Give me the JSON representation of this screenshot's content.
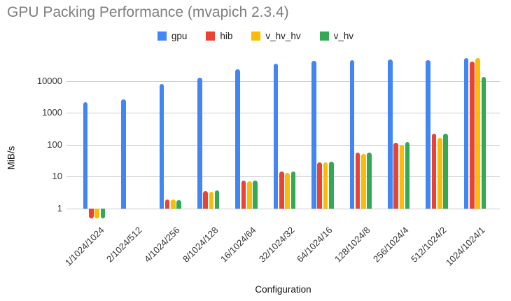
{
  "chart_data": {
    "type": "bar",
    "title": "GPU Packing Performance (mvapich 2.3.4)",
    "xlabel": "Configuration",
    "ylabel": "MiB/s",
    "y_scale": "log",
    "y_axis": {
      "ticks": [
        1,
        10,
        100,
        1000,
        10000
      ],
      "baseline": 1,
      "min": 0.47,
      "max": 60000
    },
    "grid": true,
    "legend_position": "top",
    "categories": [
      "1/1024/1024",
      "2/1024/512",
      "4/1024/256",
      "8/1024/128",
      "16/1024/64",
      "32/1024/32",
      "64/1024/16",
      "128/1024/8",
      "256/1024/4",
      "512/1024/2",
      "1024/1024/1"
    ],
    "series": [
      {
        "name": "gpu",
        "color": "#4285F4",
        "values": [
          2200,
          2700,
          8100,
          12700,
          23500,
          35000,
          42500,
          45500,
          48500,
          45500,
          52000
        ]
      },
      {
        "name": "hib",
        "color": "#EA4335",
        "values": [
          0.5,
          null,
          2.0,
          3.6,
          7.5,
          15,
          29,
          58,
          120,
          230,
          42000
        ]
      },
      {
        "name": "v_hv_hv",
        "color": "#FBBC04",
        "values": [
          0.5,
          null,
          2.0,
          3.5,
          7.4,
          13.5,
          28,
          53,
          100,
          165,
          52000
        ]
      },
      {
        "name": "v_hv",
        "color": "#34A853",
        "values": [
          0.5,
          null,
          1.9,
          3.8,
          7.8,
          15,
          30,
          58,
          122,
          225,
          13500
        ]
      }
    ]
  }
}
